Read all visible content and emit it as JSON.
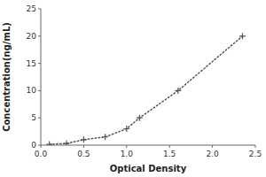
{
  "chart_data": {
    "type": "line",
    "x": [
      0.1,
      0.3,
      0.5,
      0.75,
      1.0,
      1.15,
      1.6,
      2.35
    ],
    "values": [
      0.15,
      0.3,
      1.0,
      1.5,
      3.0,
      5.0,
      10.0,
      20.0
    ],
    "xlabel": "Optical Density",
    "ylabel": "Concentration(ng/mL)",
    "xlim": [
      0,
      2.5
    ],
    "ylim": [
      0,
      25
    ],
    "xticks": [
      {
        "value": 0,
        "label": "0.0"
      },
      0.5,
      {
        "value": 1,
        "label": "1.0"
      },
      1.5,
      {
        "value": 2,
        "label": "2.0"
      },
      2.5
    ],
    "yticks": [
      0,
      5,
      10,
      15,
      20,
      25
    ],
    "color": "#555555",
    "marker": "plus",
    "line_style": "dotted"
  }
}
